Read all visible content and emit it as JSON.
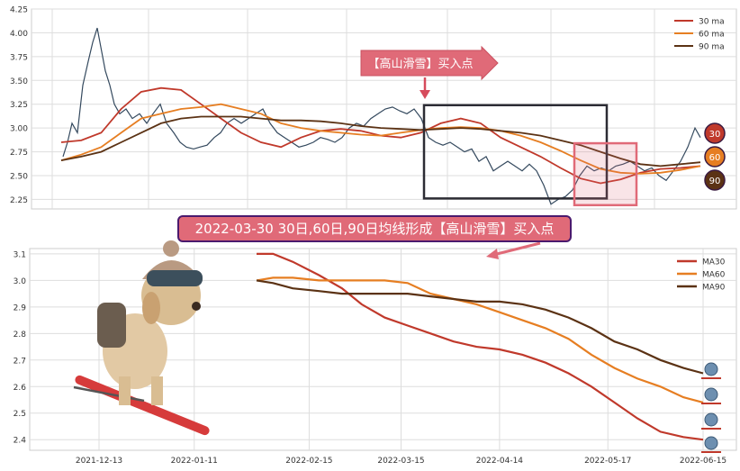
{
  "chart_data": [
    {
      "type": "line",
      "title": "",
      "xlabel": "",
      "ylabel": "",
      "ylim": [
        2.15,
        4.25
      ],
      "y_ticks": [
        "2.25",
        "2.50",
        "2.75",
        "3.00",
        "3.25",
        "3.50",
        "3.75",
        "4.00",
        "4.25"
      ],
      "grid": true,
      "legend_position": "top-right",
      "annotation": "【高山滑雪】买入点",
      "series": [
        {
          "name": "30 ma",
          "color": "#c0392b",
          "values": [
            2.85,
            2.87,
            2.95,
            3.2,
            3.38,
            3.42,
            3.4,
            3.25,
            3.1,
            2.95,
            2.85,
            2.8,
            2.9,
            2.97,
            2.99,
            2.97,
            2.92,
            2.9,
            2.95,
            3.05,
            3.1,
            3.05,
            2.9,
            2.8,
            2.7,
            2.58,
            2.47,
            2.42,
            2.46,
            2.53,
            2.57,
            2.58,
            2.6
          ]
        },
        {
          "name": "60 ma",
          "color": "#e67e22",
          "values": [
            2.66,
            2.72,
            2.8,
            2.95,
            3.1,
            3.15,
            3.2,
            3.22,
            3.25,
            3.2,
            3.15,
            3.05,
            3.0,
            2.97,
            2.95,
            2.93,
            2.92,
            2.95,
            2.98,
            3.0,
            3.01,
            3.0,
            2.97,
            2.92,
            2.85,
            2.76,
            2.66,
            2.57,
            2.53,
            2.52,
            2.53,
            2.56,
            2.6
          ]
        },
        {
          "name": "90 ma",
          "color": "#5b3214",
          "values": [
            2.66,
            2.7,
            2.75,
            2.85,
            2.95,
            3.05,
            3.1,
            3.12,
            3.12,
            3.12,
            3.1,
            3.08,
            3.08,
            3.07,
            3.05,
            3.02,
            3.0,
            2.99,
            2.98,
            2.99,
            3.0,
            2.99,
            2.97,
            2.95,
            2.92,
            2.87,
            2.82,
            2.75,
            2.68,
            2.62,
            2.6,
            2.62,
            2.64
          ]
        }
      ],
      "markers": [
        {
          "label": "30",
          "color": "#c0392b"
        },
        {
          "label": "60",
          "color": "#e67e22"
        },
        {
          "label": "90",
          "color": "#5b3214"
        }
      ]
    },
    {
      "type": "line",
      "title": "",
      "xlabel": "",
      "ylabel": "",
      "ylim": [
        2.36,
        3.12
      ],
      "y_ticks": [
        "2.4",
        "2.5",
        "2.6",
        "2.7",
        "2.8",
        "2.9",
        "3.0",
        "3.1"
      ],
      "x_tick_labels": [
        "2021-12-13",
        "2022-01-11",
        "2022-02-15",
        "2022-03-15",
        "2022-04-14",
        "2022-05-17",
        "2022-06-15"
      ],
      "x_tick_dates": [
        "2021-12-13",
        "2022-01-11",
        "2022-02-15",
        "2022-03-15",
        "2022-04-14",
        "2022-05-17",
        "2022-06-15"
      ],
      "grid": true,
      "legend_position": "top-right",
      "series": [
        {
          "name": "MA30",
          "color": "#c0392b",
          "x": [
            "2022-01-30",
            "2022-02-04",
            "2022-02-10",
            "2022-02-18",
            "2022-02-25",
            "2022-03-03",
            "2022-03-10",
            "2022-03-17",
            "2022-03-24",
            "2022-03-31",
            "2022-04-07",
            "2022-04-14",
            "2022-04-21",
            "2022-04-28",
            "2022-05-05",
            "2022-05-12",
            "2022-05-19",
            "2022-05-26",
            "2022-06-02",
            "2022-06-09",
            "2022-06-15"
          ],
          "values": [
            3.1,
            3.1,
            3.07,
            3.02,
            2.97,
            2.91,
            2.86,
            2.83,
            2.8,
            2.77,
            2.75,
            2.74,
            2.72,
            2.69,
            2.65,
            2.6,
            2.54,
            2.48,
            2.43,
            2.41,
            2.4
          ]
        },
        {
          "name": "MA60",
          "color": "#e67e22",
          "x": [
            "2022-01-30",
            "2022-02-04",
            "2022-02-10",
            "2022-02-18",
            "2022-02-25",
            "2022-03-03",
            "2022-03-10",
            "2022-03-17",
            "2022-03-24",
            "2022-03-31",
            "2022-04-07",
            "2022-04-14",
            "2022-04-21",
            "2022-04-28",
            "2022-05-05",
            "2022-05-12",
            "2022-05-19",
            "2022-05-26",
            "2022-06-02",
            "2022-06-09",
            "2022-06-15"
          ],
          "values": [
            3.0,
            3.01,
            3.01,
            3.0,
            3.0,
            3.0,
            3.0,
            2.99,
            2.95,
            2.93,
            2.91,
            2.88,
            2.85,
            2.82,
            2.78,
            2.72,
            2.67,
            2.63,
            2.6,
            2.56,
            2.54
          ]
        },
        {
          "name": "MA90",
          "color": "#5b3214",
          "x": [
            "2022-01-30",
            "2022-02-04",
            "2022-02-10",
            "2022-02-18",
            "2022-02-25",
            "2022-03-03",
            "2022-03-10",
            "2022-03-17",
            "2022-03-24",
            "2022-03-31",
            "2022-04-07",
            "2022-04-14",
            "2022-04-21",
            "2022-04-28",
            "2022-05-05",
            "2022-05-12",
            "2022-05-19",
            "2022-05-26",
            "2022-06-02",
            "2022-06-09",
            "2022-06-15"
          ],
          "values": [
            3.0,
            2.99,
            2.97,
            2.96,
            2.95,
            2.95,
            2.95,
            2.95,
            2.94,
            2.93,
            2.92,
            2.92,
            2.91,
            2.89,
            2.86,
            2.82,
            2.77,
            2.74,
            2.7,
            2.67,
            2.65
          ]
        }
      ]
    }
  ],
  "callout": {
    "text": "2022-03-30 30日,60日,90日均线形成【高山滑雪】买入点",
    "background": "#e06a78",
    "border": "#4a1a6e"
  }
}
